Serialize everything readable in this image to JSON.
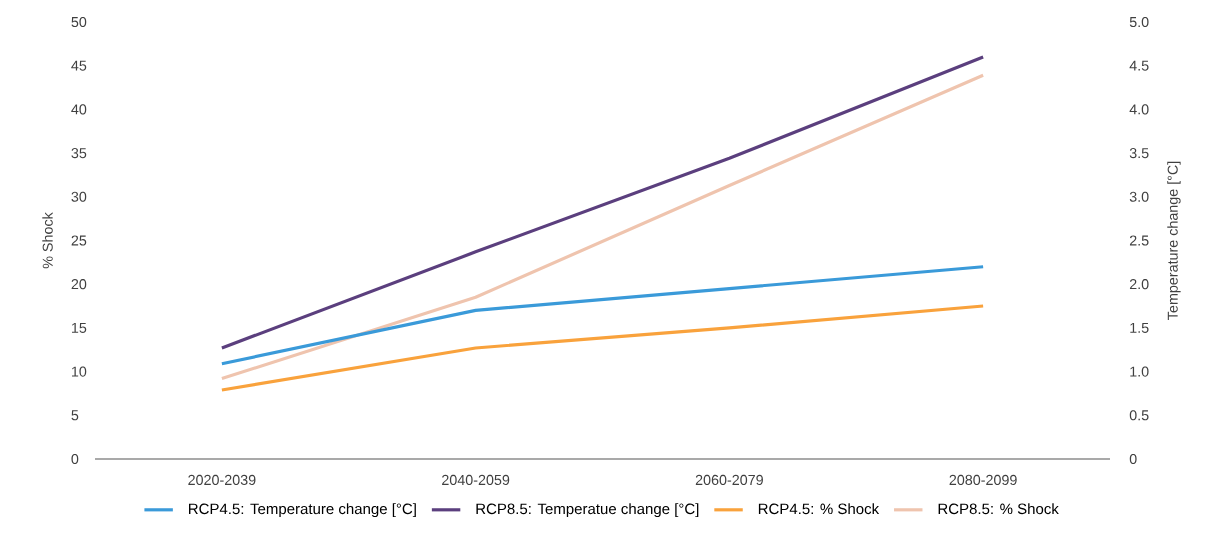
{
  "chart_data": {
    "type": "line",
    "categories": [
      "2020-2039",
      "2040-2059",
      "2060-2079",
      "2080-2099"
    ],
    "ylabel": "% Shock",
    "y2label": "Temperature change [°C]",
    "ylim": [
      0,
      50
    ],
    "yticks": [
      0,
      5,
      10,
      15,
      20,
      25,
      30,
      35,
      40,
      45,
      50
    ],
    "y2lim": [
      0,
      5
    ],
    "y2ticks": [
      0,
      {
        "value": 0.5,
        "label": "0.5"
      },
      {
        "value": 1,
        "label": "1.0"
      },
      {
        "value": 1.5,
        "label": "1.5"
      },
      {
        "value": 2,
        "label": "2.0"
      },
      {
        "value": 2.5,
        "label": "2.5"
      },
      {
        "value": 3,
        "label": "3.0"
      },
      {
        "value": 3.5,
        "label": "3.5"
      },
      {
        "value": 4,
        "label": "4.0"
      },
      {
        "value": 4.5,
        "label": "4.5"
      },
      {
        "value": 5,
        "label": "5.0"
      }
    ],
    "legend": "bottom",
    "series": [
      {
        "name": "RCP4.5: Temperature change [°C]",
        "color": "#3a9ad9",
        "axis": "y2",
        "values": [
          1.09,
          1.7,
          1.95,
          2.2
        ]
      },
      {
        "name": "RCP8.5: Temperatue change [°C]",
        "color": "#5b3f7e",
        "axis": "y2",
        "values": [
          1.27,
          2.37,
          3.44,
          4.6
        ]
      },
      {
        "name": "RCP4.5: % Shock",
        "color": "#f9a23c",
        "values": [
          7.9,
          12.7,
          15.0,
          17.5
        ]
      },
      {
        "name": "RCP8.5: % Shock",
        "color": "#efc4ae",
        "values": [
          9.2,
          18.5,
          31.3,
          43.9
        ]
      }
    ]
  }
}
